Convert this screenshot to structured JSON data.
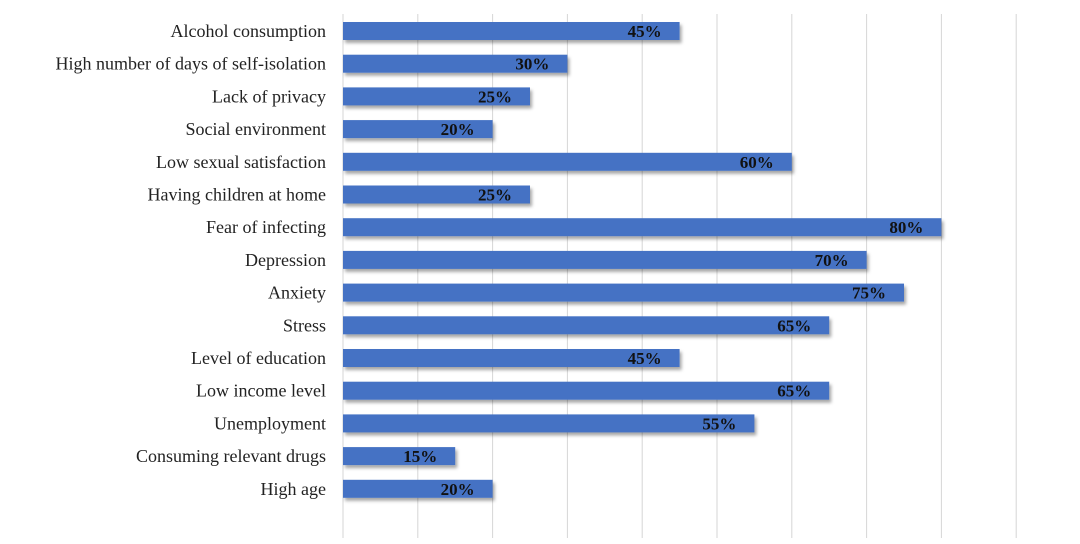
{
  "chart_data": {
    "type": "bar",
    "orientation": "horizontal",
    "title": "",
    "xlabel": "",
    "ylabel": "",
    "xlim": [
      0,
      90
    ],
    "grid": true,
    "bar_color": "#4472c4",
    "categories": [
      "Alcohol consumption",
      "High number of days of self-isolation",
      "Lack of privacy",
      "Social environment",
      "Low sexual satisfaction",
      "Having children at home",
      "Fear of infecting",
      "Depression",
      "Anxiety",
      "Stress",
      "Level of education",
      "Low  income level",
      "Unemployment",
      "Consuming relevant drugs",
      "High age"
    ],
    "values": [
      45,
      30,
      25,
      20,
      60,
      25,
      80,
      70,
      75,
      65,
      45,
      65,
      55,
      15,
      20
    ],
    "data_labels": [
      "45%",
      "30%",
      "25%",
      "20%",
      "60%",
      "25%",
      "80%",
      "70%",
      "75%",
      "65%",
      "45%",
      "65%",
      "55%",
      "15%",
      "20%"
    ]
  }
}
